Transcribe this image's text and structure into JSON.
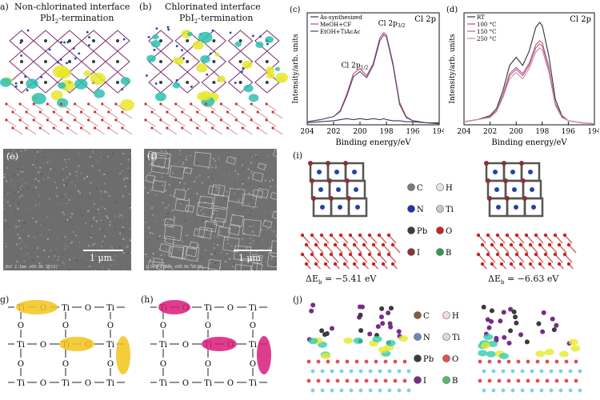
{
  "panels": {
    "a": {
      "label": "a)",
      "title1": "Non-chlorinated interface",
      "title2": "PbI",
      "title2_sub": "2",
      "title2_tail": "-termination"
    },
    "b": {
      "label": "(b)",
      "title1": "Chlorinated interface",
      "title2": "PbI",
      "title2_sub": "2",
      "title2_tail": "-termination"
    },
    "e": {
      "label": "(e)",
      "scale": "1 μm",
      "footer": "3kV 2.1mm x60.0k SE(U)"
    },
    "f": {
      "label": "(f)",
      "scale": "1 μm",
      "footer": "1.0kV 2.2mm x60.0k SE(U)"
    },
    "g": {
      "label": "g)"
    },
    "h": {
      "label": "(h)"
    },
    "i": {
      "label": "(i)",
      "dE_left": "ΔE",
      "dE_left_sub": "b",
      "dE_left_val": " = −5.41 eV",
      "dE_right": "ΔE",
      "dE_right_sub": "b",
      "dE_right_val": " = −6.63 eV"
    },
    "j": {
      "label": "(j)"
    }
  },
  "legend_i": [
    {
      "symbol": "C",
      "color": "#7a7a7a"
    },
    {
      "symbol": "H",
      "color": "#e6e6e6"
    },
    {
      "symbol": "N",
      "color": "#2233aa"
    },
    {
      "symbol": "Ti",
      "color": "#c8c8c8"
    },
    {
      "symbol": "Pb",
      "color": "#3c3c3c"
    },
    {
      "symbol": "O",
      "color": "#cc2222"
    },
    {
      "symbol": "I",
      "color": "#883333"
    },
    {
      "symbol": "B",
      "color": "#2e9e4e"
    }
  ],
  "legend_j": [
    {
      "symbol": "C",
      "color": "#8a5a3c"
    },
    {
      "symbol": "H",
      "color": "#f2dcdc"
    },
    {
      "symbol": "N",
      "color": "#6a8ab8"
    },
    {
      "symbol": "Ti",
      "color": "#d8d8e8"
    },
    {
      "symbol": "Pb",
      "color": "#3a3a3a"
    },
    {
      "symbol": "O",
      "color": "#e05050"
    },
    {
      "symbol": "I",
      "color": "#7a2a8a"
    },
    {
      "symbol": "B",
      "color": "#55bb66"
    }
  ],
  "lattice_g": {
    "top": [
      "Ti",
      "O",
      "Ti",
      "O",
      "Ti"
    ],
    "mid": [
      "Ti",
      "O",
      "Ti",
      "O",
      "Ti"
    ],
    "bot": [
      "Ti",
      "O",
      "Ti",
      "O",
      "Ti"
    ],
    "o": "O",
    "highlight_color": "#f2c31a"
  },
  "lattice_h": {
    "top": [
      "Ti",
      "O",
      "Ti",
      "O",
      "Ti"
    ],
    "mid": [
      "Ti",
      "O",
      "Ti",
      "O",
      "Ti"
    ],
    "bot": [
      "Ti",
      "O",
      "Ti",
      "O",
      "Ti"
    ],
    "o": "O",
    "highlight_color": "#d81b7a"
  },
  "chart_data": [
    {
      "id": "c",
      "type": "line",
      "panel_label": "(c)",
      "corner_label": "Cl 2p",
      "xlabel": "Binding energy/eV",
      "ylabel": "Intensity/arb. units",
      "xlim": [
        204,
        194
      ],
      "xticks": [
        204,
        202,
        200,
        198,
        196,
        194
      ],
      "legend_position": "top-left",
      "annotations": [
        {
          "text": "Cl 2p",
          "sub": "3/2",
          "x": 197.6,
          "y": 0.97
        },
        {
          "text": "Cl 2p",
          "sub": "1/2",
          "x": 200.4,
          "y": 0.56
        }
      ],
      "x": [
        204,
        203,
        202,
        201.5,
        201,
        200.5,
        200,
        199.5,
        199,
        198.5,
        198.2,
        198,
        197.5,
        197,
        196.5,
        196,
        195,
        194
      ],
      "series": [
        {
          "name": "As-synthesized",
          "color": "#3a3a5a",
          "values": [
            0.02,
            0.03,
            0.04,
            0.05,
            0.06,
            0.05,
            0.06,
            0.05,
            0.06,
            0.05,
            0.06,
            0.05,
            0.04,
            0.04,
            0.03,
            0.03,
            0.02,
            0.02
          ]
        },
        {
          "name": "MeOH+CF",
          "color": "#c8467a",
          "values": [
            0.03,
            0.05,
            0.08,
            0.14,
            0.3,
            0.5,
            0.55,
            0.48,
            0.6,
            0.85,
            0.9,
            0.88,
            0.6,
            0.22,
            0.08,
            0.04,
            0.02,
            0.01
          ]
        },
        {
          "name": "EtOH+TiAcAc",
          "color": "#4a4a6a",
          "values": [
            0.03,
            0.05,
            0.08,
            0.13,
            0.28,
            0.47,
            0.52,
            0.46,
            0.58,
            0.82,
            0.88,
            0.86,
            0.58,
            0.2,
            0.07,
            0.04,
            0.02,
            0.01
          ]
        }
      ]
    },
    {
      "id": "d",
      "type": "line",
      "panel_label": "(d)",
      "corner_label": "Cl 2p",
      "xlabel": "Binding energy/eV",
      "ylabel": "Intensity/arb. units",
      "xlim": [
        204,
        194
      ],
      "xticks": [
        204,
        202,
        200,
        198,
        196,
        194
      ],
      "legend_position": "top-left",
      "x": [
        204,
        203,
        202,
        201.5,
        201,
        200.5,
        200,
        199.5,
        199,
        198.5,
        198.2,
        198,
        197.5,
        197,
        196.5,
        196,
        195,
        194
      ],
      "series": [
        {
          "name": "RT",
          "color": "#333333",
          "values": [
            0.03,
            0.05,
            0.09,
            0.16,
            0.34,
            0.58,
            0.66,
            0.58,
            0.72,
            0.95,
            1.0,
            0.97,
            0.68,
            0.25,
            0.09,
            0.04,
            0.02,
            0.01
          ]
        },
        {
          "name": "100 °C",
          "color": "#c84a7a",
          "values": [
            0.03,
            0.05,
            0.08,
            0.14,
            0.3,
            0.5,
            0.56,
            0.5,
            0.6,
            0.78,
            0.82,
            0.8,
            0.57,
            0.21,
            0.08,
            0.04,
            0.02,
            0.01
          ]
        },
        {
          "name": "150 °C",
          "color": "#a86a9a",
          "values": [
            0.03,
            0.05,
            0.08,
            0.14,
            0.29,
            0.48,
            0.54,
            0.48,
            0.58,
            0.75,
            0.79,
            0.77,
            0.55,
            0.2,
            0.08,
            0.04,
            0.02,
            0.01
          ]
        },
        {
          "name": "250 °C",
          "color": "#d08aa8",
          "values": [
            0.03,
            0.05,
            0.07,
            0.13,
            0.27,
            0.45,
            0.51,
            0.45,
            0.55,
            0.71,
            0.75,
            0.73,
            0.52,
            0.19,
            0.07,
            0.04,
            0.02,
            0.01
          ]
        }
      ]
    }
  ]
}
